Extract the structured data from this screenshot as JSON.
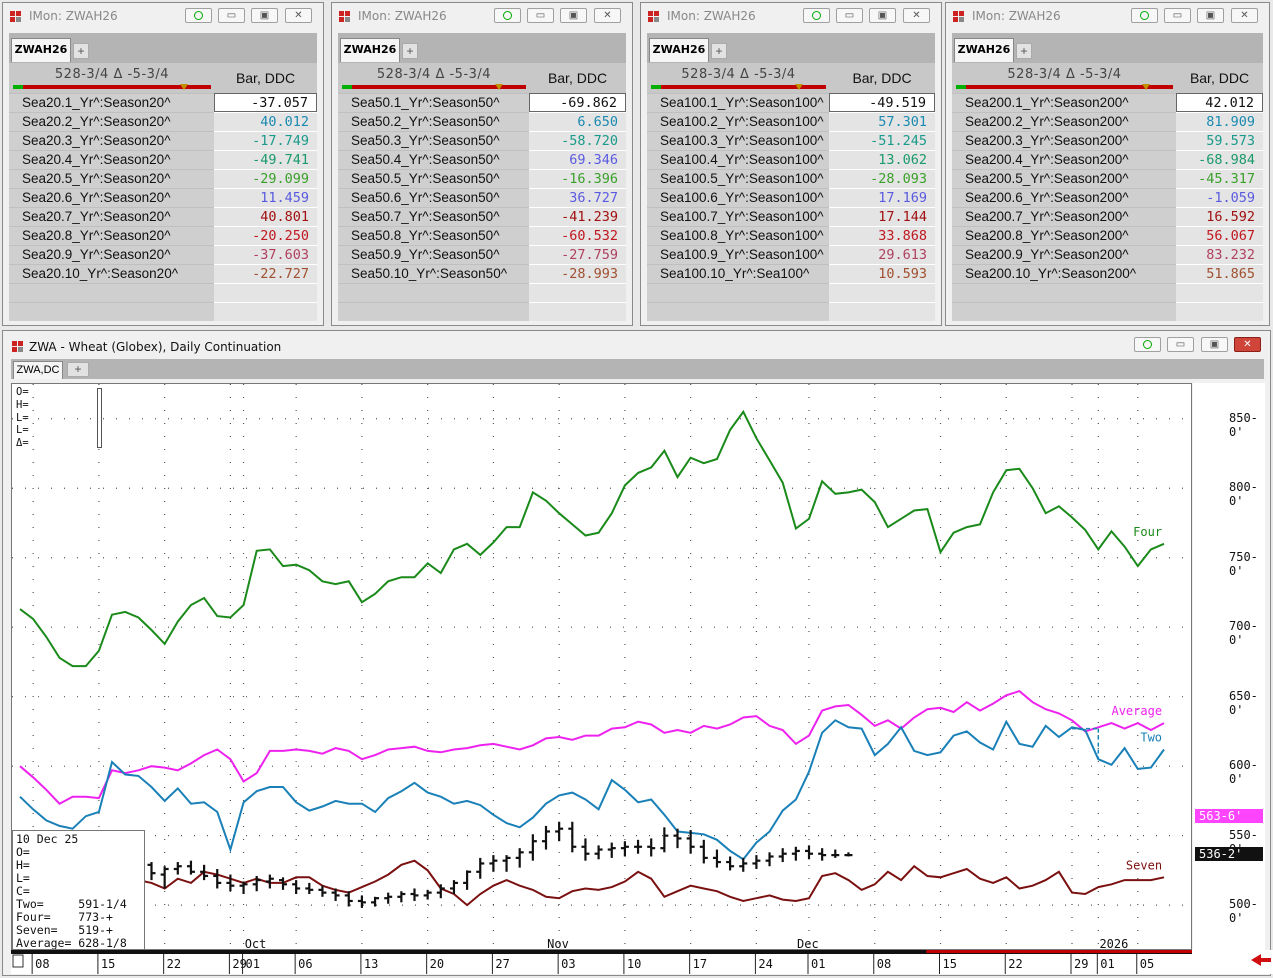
{
  "monitors": [
    {
      "title": "IMon: ZWAH26",
      "tab": "ZWAH26",
      "range": "528-3/4 Δ -5-3/4",
      "col_header": "Bar, DDC",
      "rows": [
        {
          "label": "Sea20.1_Yr^:Season20^",
          "value": "-37.057",
          "color": "#111111"
        },
        {
          "label": "Sea20.2_Yr^:Season20^",
          "value": "40.012",
          "color": "#1a8ab0"
        },
        {
          "label": "Sea20.3_Yr^:Season20^",
          "value": "-17.749",
          "color": "#1a9a8a"
        },
        {
          "label": "Sea20.4_Yr^:Season20^",
          "value": "-49.741",
          "color": "#1a9a6a"
        },
        {
          "label": "Sea20.5_Yr^:Season20^",
          "value": "-29.099",
          "color": "#3aa02a"
        },
        {
          "label": "Sea20.6_Yr^:Season20^",
          "value": "11.459",
          "color": "#5a5ae0"
        },
        {
          "label": "Sea20.7_Yr^:Season20^",
          "value": "40.801",
          "color": "#a01010"
        },
        {
          "label": "Sea20.8_Yr^:Season20^",
          "value": "-20.250",
          "color": "#c01820"
        },
        {
          "label": "Sea20.9_Yr^:Season20^",
          "value": "-37.603",
          "color": "#b04060"
        },
        {
          "label": "Sea20.10_Yr^:Season20^",
          "value": "-22.727",
          "color": "#a05030"
        }
      ]
    },
    {
      "title": "IMon: ZWAH26",
      "tab": "ZWAH26",
      "range": "528-3/4 Δ -5-3/4",
      "col_header": "Bar, DDC",
      "rows": [
        {
          "label": "Sea50.1_Yr^:Season50^",
          "value": "-69.862",
          "color": "#111111"
        },
        {
          "label": "Sea50.2_Yr^:Season50^",
          "value": "6.650",
          "color": "#1a8ab0"
        },
        {
          "label": "Sea50.3_Yr^:Season50^",
          "value": "-58.720",
          "color": "#1a9a8a"
        },
        {
          "label": "Sea50.4_Yr^:Season50^",
          "value": "69.346",
          "color": "#5a5ae0"
        },
        {
          "label": "Sea50.5_Yr^:Season50^",
          "value": "-16.396",
          "color": "#3aa02a"
        },
        {
          "label": "Sea50.6_Yr^:Season50^",
          "value": "36.727",
          "color": "#5a5ae0"
        },
        {
          "label": "Sea50.7_Yr^:Season50^",
          "value": "-41.239",
          "color": "#a01010"
        },
        {
          "label": "Sea50.8_Yr^:Season50^",
          "value": "-60.532",
          "color": "#c01820"
        },
        {
          "label": "Sea50.9_Yr^:Season50^",
          "value": "-27.759",
          "color": "#b04060"
        },
        {
          "label": "Sea50.10_Yr^:Season50^",
          "value": "-28.993",
          "color": "#a05030"
        }
      ]
    },
    {
      "title": "IMon: ZWAH26",
      "tab": "ZWAH26",
      "range": "528-3/4 Δ -5-3/4",
      "col_header": "Bar, DDC",
      "rows": [
        {
          "label": "Sea100.1_Yr^:Season100^",
          "value": "-49.519",
          "color": "#111111"
        },
        {
          "label": "Sea100.2_Yr^:Season100^",
          "value": "57.301",
          "color": "#1a8ab0"
        },
        {
          "label": "Sea100.3_Yr^:Season100^",
          "value": "-51.245",
          "color": "#1a9a8a"
        },
        {
          "label": "Sea100.4_Yr^:Season100^",
          "value": "13.062",
          "color": "#1a9a6a"
        },
        {
          "label": "Sea100.5_Yr^:Season100^",
          "value": "-28.093",
          "color": "#3aa02a"
        },
        {
          "label": "Sea100.6_Yr^:Season100^",
          "value": "17.169",
          "color": "#5a5ae0"
        },
        {
          "label": "Sea100.7_Yr^:Season100^",
          "value": "17.144",
          "color": "#a01010"
        },
        {
          "label": "Sea100.8_Yr^:Season100^",
          "value": "33.868",
          "color": "#c01820"
        },
        {
          "label": "Sea100.9_Yr^:Season100^",
          "value": "29.613",
          "color": "#b04060"
        },
        {
          "label": "Sea100.10_Yr^:Sea100^",
          "value": "10.593",
          "color": "#a05030"
        }
      ]
    },
    {
      "title": "IMon: ZWAH26",
      "tab": "ZWAH26",
      "range": "528-3/4 Δ -5-3/4",
      "col_header": "Bar, DDC",
      "rows": [
        {
          "label": "Sea200.1_Yr^:Season200^",
          "value": "42.012",
          "color": "#111111"
        },
        {
          "label": "Sea200.2_Yr^:Season200^",
          "value": "81.909",
          "color": "#1a8ab0"
        },
        {
          "label": "Sea200.3_Yr^:Season200^",
          "value": "59.573",
          "color": "#1a9a8a"
        },
        {
          "label": "Sea200.4_Yr^:Season200^",
          "value": "-68.984",
          "color": "#1a9a6a"
        },
        {
          "label": "Sea200.5_Yr^:Season200^",
          "value": "-45.317",
          "color": "#3aa02a"
        },
        {
          "label": "Sea200.6_Yr^:Season200^",
          "value": "-1.059",
          "color": "#5a5ae0"
        },
        {
          "label": "Sea200.7_Yr^:Season200^",
          "value": "16.592",
          "color": "#a01010"
        },
        {
          "label": "Sea200.8_Yr^:Season200^",
          "value": "56.067",
          "color": "#c01820"
        },
        {
          "label": "Sea200.9_Yr^:Season200^",
          "value": "83.232",
          "color": "#b04060"
        },
        {
          "label": "Sea200.10_Yr^:Season200^",
          "value": "51.865",
          "color": "#a05030"
        }
      ]
    }
  ],
  "chart_window": {
    "title": "ZWA - Wheat (Globex), Daily Continuation",
    "tab": "ZWA,DC",
    "ohlc_header": [
      "O=",
      "H=",
      "L=",
      "L=",
      "Δ="
    ],
    "databox": [
      "10 Dec 25",
      "O=",
      "H=",
      "L=",
      "C=",
      "Two=     591-1/4",
      "Four=    773-+",
      "Seven=   519-+",
      "Average= 628-1/8"
    ]
  },
  "chart_data": {
    "type": "line",
    "ylim": [
      467,
      875
    ],
    "y_ticks": [
      {
        "value": 850,
        "label": "850-0'"
      },
      {
        "value": 800,
        "label": "800-0'"
      },
      {
        "value": 750,
        "label": "750-0'"
      },
      {
        "value": 700,
        "label": "700-0'"
      },
      {
        "value": 650,
        "label": "650-0'"
      },
      {
        "value": 600,
        "label": "600-0'"
      },
      {
        "value": 550,
        "label": "550-0'"
      },
      {
        "value": 500,
        "label": "500-0'"
      }
    ],
    "x_ticks": [
      {
        "i": 1,
        "label": "08"
      },
      {
        "i": 6,
        "label": "15"
      },
      {
        "i": 11,
        "label": "22"
      },
      {
        "i": 16,
        "label": "29"
      },
      {
        "i": 17,
        "label": "01"
      },
      {
        "i": 21,
        "label": "06"
      },
      {
        "i": 26,
        "label": "13"
      },
      {
        "i": 31,
        "label": "20"
      },
      {
        "i": 36,
        "label": "27"
      },
      {
        "i": 41,
        "label": "03"
      },
      {
        "i": 46,
        "label": "10"
      },
      {
        "i": 51,
        "label": "17"
      },
      {
        "i": 56,
        "label": "24"
      },
      {
        "i": 60,
        "label": "01"
      },
      {
        "i": 65,
        "label": "08"
      },
      {
        "i": 70,
        "label": "15"
      },
      {
        "i": 75,
        "label": "22"
      },
      {
        "i": 80,
        "label": "29"
      },
      {
        "i": 82,
        "label": "01"
      },
      {
        "i": 85,
        "label": "05"
      }
    ],
    "month_labels": [
      {
        "i": 18,
        "label": "Oct"
      },
      {
        "i": 41,
        "label": "Nov"
      },
      {
        "i": 60,
        "label": "Dec"
      },
      {
        "i": 83,
        "label": "2026"
      }
    ],
    "price_boxes": [
      {
        "label": "563-6'",
        "value": 563.75,
        "bg": "#ff44ff",
        "fg": "#ffffff"
      },
      {
        "label": "536-2'",
        "value": 536.25,
        "bg": "#111111",
        "fg": "#ffffff"
      }
    ],
    "series": [
      {
        "name": "Four",
        "color": "#1a8a1a",
        "values": [
          713,
          706,
          693,
          678,
          672,
          672,
          683,
          709,
          711,
          707,
          698,
          688,
          704,
          716,
          721,
          708,
          707,
          716,
          755,
          756,
          744,
          745,
          741,
          733,
          731,
          733,
          718,
          724,
          733,
          736,
          736,
          746,
          739,
          756,
          760,
          752,
          761,
          772,
          772,
          797,
          791,
          782,
          774,
          766,
          768,
          782,
          802,
          811,
          815,
          827,
          808,
          822,
          818,
          821,
          842,
          855,
          836,
          820,
          804,
          771,
          778,
          805,
          796,
          797,
          799,
          790,
          772,
          778,
          784,
          785,
          754,
          768,
          772,
          774,
          797,
          813,
          814,
          800,
          782,
          787,
          779,
          770,
          756,
          769,
          758,
          744,
          756,
          760
        ]
      },
      {
        "name": "Average",
        "color": "#ee22ee",
        "values": [
          600,
          592,
          583,
          573,
          578,
          578,
          577,
          597,
          595,
          597,
          600,
          599,
          597,
          602,
          608,
          612,
          605,
          589,
          595,
          611,
          611,
          612,
          611,
          609,
          613,
          611,
          605,
          608,
          612,
          613,
          614,
          611,
          610,
          612,
          613,
          615,
          616,
          614,
          612,
          615,
          620,
          621,
          619,
          622,
          622,
          627,
          628,
          632,
          630,
          624,
          626,
          624,
          629,
          627,
          630,
          635,
          636,
          629,
          626,
          616,
          622,
          640,
          643,
          644,
          637,
          629,
          633,
          627,
          635,
          641,
          642,
          639,
          646,
          640,
          645,
          651,
          654,
          646,
          641,
          638,
          633,
          625,
          628,
          631,
          627,
          631,
          626,
          631
        ]
      },
      {
        "name": "Two",
        "color": "#1a80b8",
        "values": [
          578,
          569,
          561,
          557,
          555,
          564,
          567,
          603,
          594,
          593,
          585,
          575,
          584,
          573,
          574,
          567,
          540,
          574,
          582,
          585,
          585,
          574,
          568,
          571,
          575,
          573,
          573,
          567,
          577,
          582,
          588,
          581,
          578,
          573,
          575,
          572,
          565,
          559,
          556,
          563,
          573,
          579,
          581,
          576,
          569,
          590,
          583,
          574,
          576,
          565,
          553,
          552,
          551,
          547,
          539,
          533,
          545,
          553,
          568,
          576,
          596,
          624,
          633,
          628,
          627,
          608,
          616,
          628,
          611,
          608,
          610,
          622,
          625,
          617,
          612,
          632,
          616,
          614,
          629,
          621,
          628,
          626,
          605,
          601,
          613,
          598,
          599,
          612
        ]
      },
      {
        "name": "Seven",
        "color": "#7a1010",
        "values": [
          513,
          511,
          509,
          508,
          510,
          511,
          510,
          516,
          517,
          518,
          516,
          512,
          519,
          516,
          524,
          522,
          519,
          516,
          519,
          516,
          516,
          520,
          520,
          514,
          511,
          509,
          513,
          517,
          522,
          529,
          532,
          525,
          512,
          508,
          500,
          508,
          514,
          518,
          514,
          511,
          506,
          505,
          510,
          512,
          511,
          513,
          517,
          524,
          519,
          506,
          510,
          514,
          512,
          510,
          506,
          503,
          505,
          507,
          504,
          503,
          505,
          521,
          523,
          518,
          511,
          515,
          524,
          518,
          528,
          521,
          520,
          523,
          526,
          519,
          516,
          520,
          512,
          514,
          518,
          524,
          509,
          508,
          513,
          515,
          518,
          518,
          518,
          520
        ]
      }
    ],
    "bars": {
      "color": "#111111",
      "data": [
        [
          null,
          null,
          null,
          null
        ],
        [
          null,
          null,
          null,
          null
        ],
        [
          null,
          null,
          null,
          null
        ],
        [
          null,
          null,
          null,
          null
        ],
        [
          null,
          null,
          null,
          null
        ],
        [
          null,
          null,
          null,
          null
        ],
        [
          null,
          null,
          null,
          null
        ],
        [
          null,
          null,
          null,
          null
        ],
        [
          null,
          null,
          null,
          null
        ],
        [
          528,
          534,
          522,
          529
        ],
        [
          529,
          531,
          518,
          523
        ],
        [
          522,
          528,
          512,
          526
        ],
        [
          526,
          531,
          522,
          528
        ],
        [
          528,
          532,
          522,
          524
        ],
        [
          524,
          529,
          518,
          521
        ],
        [
          521,
          526,
          512,
          516
        ],
        [
          516,
          522,
          510,
          514
        ],
        [
          514,
          517,
          508,
          515
        ],
        [
          515,
          521,
          510,
          518
        ],
        [
          517,
          522,
          512,
          519
        ],
        [
          518,
          520,
          511,
          515
        ],
        [
          515,
          518,
          508,
          512
        ],
        [
          512,
          516,
          508,
          511
        ],
        [
          511,
          514,
          506,
          509
        ],
        [
          509,
          512,
          503,
          507
        ],
        [
          507,
          510,
          499,
          503
        ],
        [
          503,
          507,
          498,
          502
        ],
        [
          502,
          506,
          499,
          505
        ],
        [
          505,
          509,
          501,
          506
        ],
        [
          506,
          510,
          502,
          508
        ],
        [
          508,
          512,
          503,
          507
        ],
        [
          507,
          511,
          504,
          509
        ],
        [
          509,
          515,
          505,
          512
        ],
        [
          512,
          518,
          508,
          516
        ],
        [
          516,
          525,
          511,
          524
        ],
        [
          524,
          534,
          519,
          530
        ],
        [
          530,
          536,
          524,
          532
        ],
        [
          532,
          536,
          524,
          534
        ],
        [
          534,
          541,
          527,
          538
        ],
        [
          538,
          551,
          532,
          546
        ],
        [
          546,
          557,
          540,
          553
        ],
        [
          553,
          560,
          546,
          555
        ],
        [
          555,
          560,
          538,
          542
        ],
        [
          542,
          548,
          532,
          537
        ],
        [
          537,
          543,
          533,
          540
        ],
        [
          540,
          545,
          534,
          541
        ],
        [
          541,
          546,
          535,
          542
        ],
        [
          542,
          547,
          537,
          542
        ],
        [
          542,
          548,
          535,
          541
        ],
        [
          541,
          556,
          538,
          550
        ],
        [
          550,
          555,
          541,
          548
        ],
        [
          548,
          554,
          537,
          542
        ],
        [
          542,
          547,
          530,
          534
        ],
        [
          534,
          540,
          527,
          531
        ],
        [
          531,
          535,
          525,
          528
        ],
        [
          528,
          534,
          524,
          530
        ],
        [
          530,
          536,
          526,
          532
        ],
        [
          532,
          538,
          528,
          535
        ],
        [
          535,
          541,
          531,
          537
        ],
        [
          537,
          542,
          532,
          539
        ],
        [
          539,
          543,
          533,
          537
        ],
        [
          537,
          541,
          532,
          536
        ],
        [
          536,
          540,
          534,
          536
        ],
        [
          536,
          538,
          535,
          536
        ]
      ]
    },
    "dashed_projection": {
      "color": "#1a80b8",
      "from_i": 80,
      "to_i": 82,
      "y": 627,
      "drop_to": 605
    }
  }
}
